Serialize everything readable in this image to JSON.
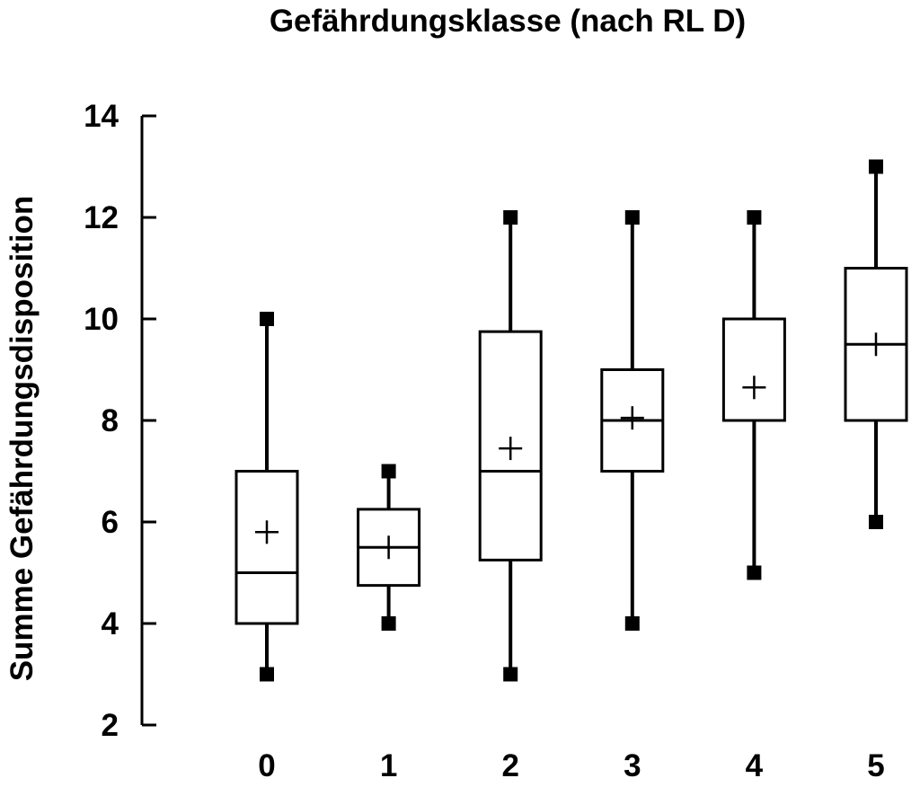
{
  "chart_data": {
    "type": "boxplot",
    "title": "Gefährdungsklasse (nach RL D)",
    "xlabel": "",
    "ylabel": "Summe Gefährdungsdisposition",
    "ylim": [
      2,
      14
    ],
    "yticks": [
      2,
      4,
      6,
      8,
      10,
      12,
      14
    ],
    "categories": [
      "0",
      "1",
      "2",
      "3",
      "4",
      "5"
    ],
    "boxes": [
      {
        "category": "0",
        "min": 3,
        "q1": 4,
        "median": 5,
        "q3": 7,
        "max": 10,
        "mean": 5.8
      },
      {
        "category": "1",
        "min": 4,
        "q1": 4.75,
        "median": 5.5,
        "q3": 6.25,
        "max": 7,
        "mean": 5.5
      },
      {
        "category": "2",
        "min": 3,
        "q1": 5.25,
        "median": 7,
        "q3": 9.75,
        "max": 12,
        "mean": 7.45
      },
      {
        "category": "3",
        "min": 4,
        "q1": 7,
        "median": 8,
        "q3": 9,
        "max": 12,
        "mean": 8.05
      },
      {
        "category": "4",
        "min": 5,
        "q1": 8,
        "median": 8,
        "q3": 10,
        "max": 12,
        "mean": 8.65
      },
      {
        "category": "5",
        "min": 6,
        "q1": 8,
        "median": 9.5,
        "q3": 11,
        "max": 13,
        "mean": 9.5
      }
    ],
    "grid": false,
    "legend": "none",
    "colors": {
      "stroke": "#000000",
      "fill": "#ffffff"
    }
  }
}
